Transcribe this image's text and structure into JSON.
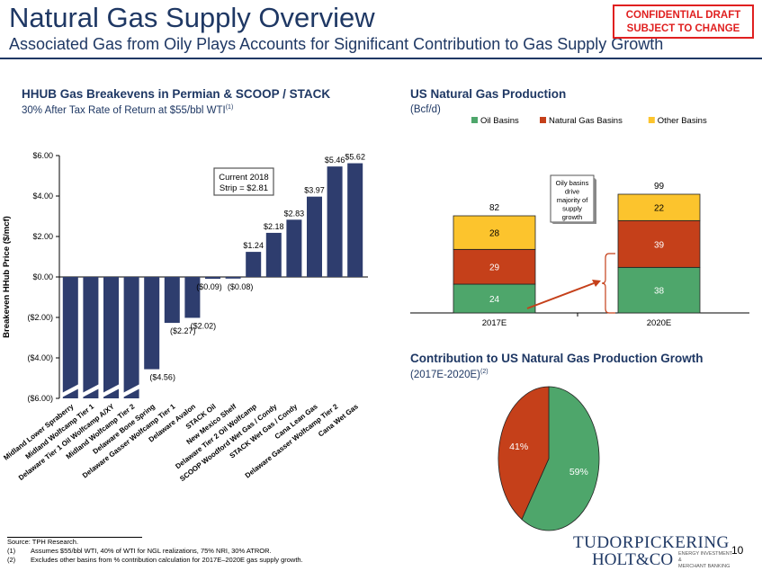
{
  "header": {
    "title": "Natural Gas Supply Overview",
    "subtitle": "Associated Gas from Oily Plays Accounts for Significant Contribution to Gas Supply Growth",
    "badge_line1": "CONFIDENTIAL DRAFT",
    "badge_line2": "SUBJECT TO CHANGE"
  },
  "left_panel": {
    "title": "HHUB Gas Breakevens in Permian & SCOOP / STACK",
    "subtitle": "30% After Tax Rate of Return at $55/bbl WTI",
    "subtitle_sup": "(1)",
    "callout_line1": "Current 2018",
    "callout_line2": "Strip = $2.81"
  },
  "right_top": {
    "title": "US Natural Gas Production",
    "subtitle": "(Bcf/d)",
    "callout_lines": [
      "Oily basins",
      "drive",
      "majority of",
      "supply",
      "growth"
    ]
  },
  "right_bottom": {
    "title": "Contribution to US Natural Gas Production Growth",
    "subtitle": "(2017E-2020E)",
    "subtitle_sup": "(2)"
  },
  "chart_data": [
    {
      "type": "bar",
      "ylabel": "Breakeven HHub Price ($/mcf)",
      "ylim": [
        -6,
        6
      ],
      "yticks": [
        "($6.00)",
        "($4.00)",
        "($2.00)",
        "$0.00",
        "$2.00",
        "$4.00",
        "$6.00"
      ],
      "categories": [
        "Midland Lower Spraberry",
        "Midland Wolfcamp Tier 1",
        "Delaware Tier 1 Oil Wolfcamp A/XY",
        "Midland Wolfcamp Tier 2",
        "Delaware Bone Spring",
        "Delaware Gasser Wolfcamp Tier 1",
        "Delaware Avalon",
        "STACK Oil",
        "New Mexico Shelf",
        "Delaware Tier 2 Oil Wolfcamp",
        "SCOOP Woodford Wet Gas / Condy",
        "STACK Wet Gas / Condy",
        "Cana Lean Gas",
        "Delaware Gasser Wolfcamp Tier 2",
        "Cana Wet Gas"
      ],
      "values": [
        -6.0,
        -6.0,
        -6.0,
        -6.0,
        -4.56,
        -2.27,
        -2.02,
        -0.09,
        -0.08,
        1.24,
        2.18,
        2.83,
        3.97,
        5.46,
        5.62
      ],
      "labels": [
        "",
        "",
        "",
        "",
        "($4.56)",
        "($2.27)",
        "($2.02)",
        "($0.09)",
        "($0.08)",
        "$1.24",
        "$2.18",
        "$2.83",
        "$3.97",
        "$5.46",
        "$5.62"
      ],
      "truncated": [
        true,
        true,
        true,
        true,
        false,
        false,
        false,
        false,
        false,
        false,
        false,
        false,
        false,
        false,
        false
      ],
      "color": "#2e3d6e"
    },
    {
      "type": "bar",
      "stacked": true,
      "categories": [
        "2017E",
        "2020E"
      ],
      "series": [
        {
          "name": "Oil Basins",
          "values": [
            24,
            38
          ],
          "color": "#4ea66b"
        },
        {
          "name": "Natural Gas Basins",
          "values": [
            29,
            39
          ],
          "color": "#c5401a"
        },
        {
          "name": "Other Basins",
          "values": [
            28,
            22
          ],
          "color": "#fcc42d"
        }
      ],
      "totals": [
        "82",
        "99"
      ],
      "legend": "top"
    },
    {
      "type": "pie",
      "slices": [
        {
          "label": "59%",
          "value": 59,
          "color": "#4ea66b"
        },
        {
          "label": "41%",
          "value": 41,
          "color": "#c5401a"
        }
      ]
    }
  ],
  "footer": {
    "source": "Source: TPH Research.",
    "notes": [
      {
        "num": "(1)",
        "text": "Assumes $55/bbl WTI, 40% of WTI for NGL realizations, 75% NRI, 30% ATROR."
      },
      {
        "num": "(2)",
        "text": "Excludes other basins from % contribution calculation for 2017E–2020E gas supply growth."
      }
    ],
    "logo_line1": "TUDORPICKERING",
    "logo_line2": "HOLT&CO",
    "logo_tag1": "ENERGY INVESTMENT &",
    "logo_tag2": "MERCHANT BANKING",
    "page_number": "10"
  }
}
